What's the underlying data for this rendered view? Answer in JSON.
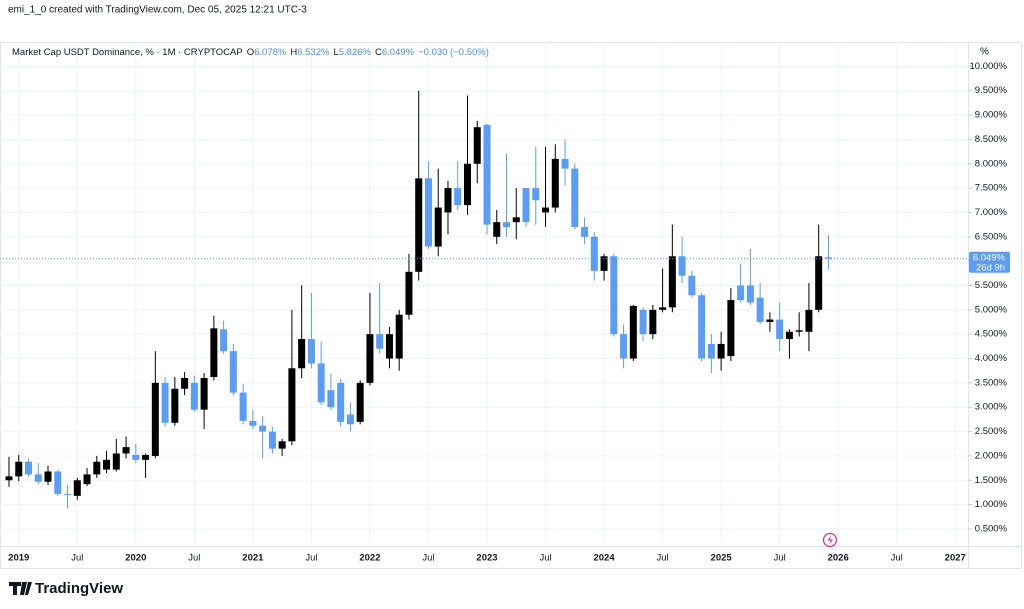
{
  "header": "emi_1_0 created with TradingView.com, Dec 05, 2025 12:21 UTC-3",
  "brand": "TradingView",
  "chart_data": {
    "type": "candlestick",
    "title": "Market Cap USDT Dominance, % · 1M · CRYPTOCAP",
    "legend": {
      "ohlc": [
        {
          "key": "O",
          "value": "6.078%"
        },
        {
          "key": "H",
          "value": "6.532%"
        },
        {
          "key": "L",
          "value": "5.826%"
        },
        {
          "key": "C",
          "value": "6.049%"
        }
      ],
      "change": "−0.030 (−0.50%)"
    },
    "y_unit": "%",
    "last_price_label": "6.049%",
    "countdown": "26d 9h",
    "up_color": "#000000",
    "down_color": "#5b9cf6",
    "grid": true,
    "x": [
      "2018-12",
      "2019-01",
      "2019-02",
      "2019-03",
      "2019-04",
      "2019-05",
      "2019-06",
      "2019-07",
      "2019-08",
      "2019-09",
      "2019-10",
      "2019-11",
      "2019-12",
      "2020-01",
      "2020-02",
      "2020-03",
      "2020-04",
      "2020-05",
      "2020-06",
      "2020-07",
      "2020-08",
      "2020-09",
      "2020-10",
      "2020-11",
      "2020-12",
      "2021-01",
      "2021-02",
      "2021-03",
      "2021-04",
      "2021-05",
      "2021-06",
      "2021-07",
      "2021-08",
      "2021-09",
      "2021-10",
      "2021-11",
      "2021-12",
      "2022-01",
      "2022-02",
      "2022-03",
      "2022-04",
      "2022-05",
      "2022-06",
      "2022-07",
      "2022-08",
      "2022-09",
      "2022-10",
      "2022-11",
      "2022-12",
      "2023-01",
      "2023-02",
      "2023-03",
      "2023-04",
      "2023-05",
      "2023-06",
      "2023-07",
      "2023-08",
      "2023-09",
      "2023-10",
      "2023-11",
      "2023-12",
      "2024-01",
      "2024-02",
      "2024-03",
      "2024-04",
      "2024-05",
      "2024-06",
      "2024-07",
      "2024-08",
      "2024-09",
      "2024-10",
      "2024-11",
      "2024-12",
      "2025-01",
      "2025-02",
      "2025-03",
      "2025-04",
      "2025-05",
      "2025-06",
      "2025-07",
      "2025-08",
      "2025-09",
      "2025-10",
      "2025-11",
      "2025-12"
    ],
    "open": [
      1.5,
      1.58,
      1.88,
      1.62,
      1.47,
      1.68,
      1.22,
      1.18,
      1.42,
      1.62,
      1.72,
      1.72,
      2.05,
      2.02,
      1.92,
      2.0,
      3.5,
      2.68,
      3.38,
      3.5,
      2.95,
      3.62,
      4.6,
      4.15,
      3.3,
      2.72,
      2.62,
      2.5,
      2.15,
      2.3,
      3.8,
      4.4,
      3.9,
      3.35,
      3.5,
      2.85,
      2.7,
      3.5,
      4.5,
      4.0,
      4.0,
      4.9,
      5.78,
      7.7,
      6.3,
      7.0,
      7.5,
      7.15,
      8.0,
      8.8,
      6.5,
      6.8,
      6.8,
      7.5,
      7.5,
      7.0,
      7.1,
      8.1,
      7.9,
      6.7,
      6.5,
      5.8,
      6.1,
      4.5,
      4.0,
      5.0,
      4.5,
      5.0,
      5.05,
      6.1,
      5.7,
      5.3,
      4.3,
      4.0,
      4.05,
      5.5,
      5.5,
      5.25,
      4.75,
      4.8,
      4.4,
      4.55,
      4.55,
      5.0,
      6.078
    ],
    "high": [
      1.98,
      2.02,
      1.95,
      1.85,
      1.8,
      1.72,
      1.4,
      1.55,
      1.75,
      2.0,
      2.1,
      2.35,
      2.4,
      2.25,
      2.05,
      4.15,
      3.62,
      3.62,
      3.72,
      3.65,
      3.7,
      4.88,
      4.78,
      4.3,
      3.48,
      2.95,
      2.82,
      2.6,
      2.35,
      5.0,
      5.5,
      5.35,
      4.35,
      3.7,
      3.58,
      3.1,
      3.55,
      5.35,
      5.55,
      4.65,
      5.0,
      6.15,
      9.5,
      8.05,
      7.9,
      7.65,
      8.05,
      9.4,
      8.88,
      8.82,
      7.05,
      8.2,
      7.5,
      7.5,
      8.35,
      8.35,
      8.4,
      8.5,
      8.0,
      6.9,
      6.6,
      6.15,
      6.15,
      4.7,
      5.1,
      5.05,
      5.1,
      5.85,
      6.75,
      6.5,
      5.8,
      5.35,
      4.5,
      4.55,
      5.45,
      5.95,
      6.25,
      5.55,
      4.95,
      5.15,
      4.6,
      4.95,
      5.55,
      6.75,
      6.532
    ],
    "low": [
      1.37,
      1.48,
      1.58,
      1.42,
      1.4,
      1.18,
      0.92,
      1.1,
      1.38,
      1.55,
      1.65,
      1.68,
      1.95,
      1.85,
      1.55,
      1.95,
      2.6,
      2.62,
      3.25,
      2.9,
      2.55,
      3.55,
      4.1,
      3.25,
      2.65,
      2.55,
      1.95,
      2.05,
      2.0,
      2.22,
      3.6,
      3.8,
      3.05,
      2.95,
      2.6,
      2.5,
      2.65,
      3.45,
      4.1,
      3.8,
      3.75,
      4.8,
      5.6,
      6.25,
      6.1,
      6.55,
      7.05,
      6.95,
      7.6,
      6.55,
      6.35,
      6.5,
      6.45,
      6.7,
      6.75,
      6.7,
      7.0,
      7.55,
      6.65,
      6.35,
      5.6,
      5.6,
      4.45,
      3.8,
      3.95,
      4.35,
      4.4,
      4.95,
      4.95,
      5.55,
      5.25,
      3.95,
      3.7,
      3.75,
      3.95,
      5.15,
      5.1,
      4.7,
      4.55,
      4.15,
      4.0,
      4.45,
      4.15,
      4.95,
      5.826
    ],
    "close": [
      1.58,
      1.88,
      1.62,
      1.47,
      1.68,
      1.22,
      1.2,
      1.5,
      1.62,
      1.88,
      1.92,
      2.05,
      2.18,
      1.92,
      2.02,
      3.5,
      2.68,
      3.38,
      3.6,
      2.95,
      3.6,
      4.62,
      4.15,
      3.3,
      2.72,
      2.62,
      2.5,
      2.15,
      2.3,
      3.8,
      4.4,
      3.9,
      3.1,
      3.0,
      2.7,
      2.65,
      3.5,
      4.5,
      4.2,
      4.5,
      4.9,
      5.78,
      7.7,
      6.3,
      7.1,
      7.5,
      7.15,
      8.0,
      8.75,
      6.75,
      6.8,
      6.7,
      6.9,
      6.8,
      7.25,
      7.1,
      8.1,
      7.9,
      6.7,
      6.5,
      5.8,
      6.1,
      4.5,
      4.0,
      5.08,
      4.5,
      5.0,
      5.05,
      6.1,
      5.7,
      5.3,
      4.0,
      4.0,
      4.3,
      5.2,
      5.2,
      5.15,
      4.75,
      4.8,
      4.4,
      4.55,
      4.58,
      5.0,
      6.1,
      6.049
    ],
    "xlim": [
      "2018-12",
      "2027-02"
    ],
    "xticks": [
      {
        "value": "2019-01",
        "label": "2019"
      },
      {
        "value": "2019-07",
        "label": "Jul"
      },
      {
        "value": "2020-01",
        "label": "2020"
      },
      {
        "value": "2020-07",
        "label": "Jul"
      },
      {
        "value": "2021-01",
        "label": "2021"
      },
      {
        "value": "2021-07",
        "label": "Jul"
      },
      {
        "value": "2022-01",
        "label": "2022"
      },
      {
        "value": "2022-07",
        "label": "Jul"
      },
      {
        "value": "2023-01",
        "label": "2023"
      },
      {
        "value": "2023-07",
        "label": "Jul"
      },
      {
        "value": "2024-01",
        "label": "2024"
      },
      {
        "value": "2024-07",
        "label": "Jul"
      },
      {
        "value": "2025-01",
        "label": "2025"
      },
      {
        "value": "2025-07",
        "label": "Jul"
      },
      {
        "value": "2026-01",
        "label": "2026"
      },
      {
        "value": "2026-07",
        "label": "Jul"
      },
      {
        "value": "2027-01",
        "label": "2027"
      }
    ],
    "ylim": [
      0.15,
      10.5
    ],
    "yticks": [
      {
        "value": 0.5,
        "label": "0.500%"
      },
      {
        "value": 1,
        "label": "1.000%"
      },
      {
        "value": 1.5,
        "label": "1.500%"
      },
      {
        "value": 2,
        "label": "2.000%"
      },
      {
        "value": 2.5,
        "label": "2.500%"
      },
      {
        "value": 3,
        "label": "3.000%"
      },
      {
        "value": 3.5,
        "label": "3.500%"
      },
      {
        "value": 4,
        "label": "4.000%"
      },
      {
        "value": 4.5,
        "label": "4.500%"
      },
      {
        "value": 5,
        "label": "5.000%"
      },
      {
        "value": 5.5,
        "label": "5.500%"
      },
      {
        "value": 6,
        "label": "6.000%"
      },
      {
        "value": 6.5,
        "label": "6.500%"
      },
      {
        "value": 7,
        "label": "7.000%"
      },
      {
        "value": 7.5,
        "label": "7.500%"
      },
      {
        "value": 8,
        "label": "8.000%"
      },
      {
        "value": 8.5,
        "label": "8.500%"
      },
      {
        "value": 9,
        "label": "9.000%"
      },
      {
        "value": 9.5,
        "label": "9.500%"
      },
      {
        "value": 10,
        "label": "10.000%"
      }
    ]
  }
}
